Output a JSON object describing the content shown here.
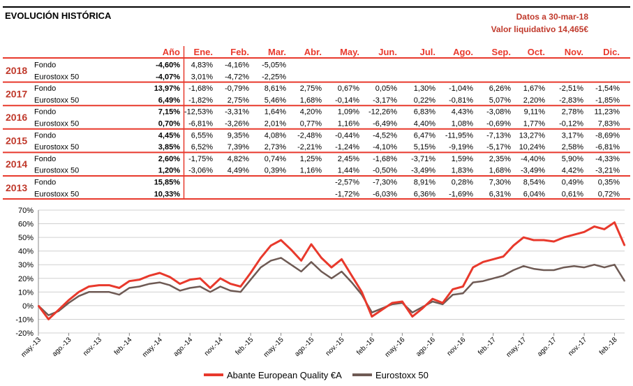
{
  "header": {
    "title": "EVOLUCIÓN HISTÓRICA",
    "date_line": "Datos a 30-mar-18",
    "nav_line": "Valor liquidativo 14,465€"
  },
  "colors": {
    "accent": "#e8392c",
    "fund_line": "#e8392c",
    "index_line": "#6e5a54",
    "row_label": "#c0392b"
  },
  "table": {
    "columns": [
      "Año",
      "Ene.",
      "Feb.",
      "Mar.",
      "Abr.",
      "May.",
      "Jun.",
      "Jul.",
      "Ago.",
      "Sep.",
      "Oct.",
      "Nov.",
      "Dic."
    ],
    "years": [
      {
        "year": "2018",
        "rows": [
          {
            "label": "Fondo",
            "values": [
              "-4,60%",
              "4,83%",
              "-4,16%",
              "-5,05%",
              "",
              "",
              "",
              "",
              "",
              "",
              "",
              "",
              ""
            ]
          },
          {
            "label": "Eurostoxx 50",
            "values": [
              "-4,07%",
              "3,01%",
              "-4,72%",
              "-2,25%",
              "",
              "",
              "",
              "",
              "",
              "",
              "",
              "",
              ""
            ]
          }
        ]
      },
      {
        "year": "2017",
        "rows": [
          {
            "label": "Fondo",
            "values": [
              "13,97%",
              "-1,68%",
              "-0,79%",
              "8,61%",
              "2,75%",
              "0,67%",
              "0,05%",
              "1,30%",
              "-1,04%",
              "6,26%",
              "1,67%",
              "-2,51%",
              "-1,54%"
            ]
          },
          {
            "label": "Eurostoxx 50",
            "values": [
              "6,49%",
              "-1,82%",
              "2,75%",
              "5,46%",
              "1,68%",
              "-0,14%",
              "-3,17%",
              "0,22%",
              "-0,81%",
              "5,07%",
              "2,20%",
              "-2,83%",
              "-1,85%"
            ]
          }
        ]
      },
      {
        "year": "2016",
        "rows": [
          {
            "label": "Fondo",
            "values": [
              "7,15%",
              "-12,53%",
              "-3,31%",
              "1,64%",
              "4,20%",
              "1,09%",
              "-12,26%",
              "6,83%",
              "4,43%",
              "-3,08%",
              "9,11%",
              "2,78%",
              "11,23%"
            ]
          },
          {
            "label": "Eurostoxx 50",
            "values": [
              "0,70%",
              "-6,81%",
              "-3,26%",
              "2,01%",
              "0,77%",
              "1,16%",
              "-6,49%",
              "4,40%",
              "1,08%",
              "-0,69%",
              "1,77%",
              "-0,12%",
              "7,83%"
            ]
          }
        ]
      },
      {
        "year": "2015",
        "rows": [
          {
            "label": "Fondo",
            "values": [
              "4,45%",
              "6,55%",
              "9,35%",
              "4,08%",
              "-2,48%",
              "-0,44%",
              "-4,52%",
              "6,47%",
              "-11,95%",
              "-7,13%",
              "13,27%",
              "3,17%",
              "-8,69%"
            ]
          },
          {
            "label": "Eurostoxx 50",
            "values": [
              "3,85%",
              "6,52%",
              "7,39%",
              "2,73%",
              "-2,21%",
              "-1,24%",
              "-4,10%",
              "5,15%",
              "-9,19%",
              "-5,17%",
              "10,24%",
              "2,58%",
              "-6,81%"
            ]
          }
        ]
      },
      {
        "year": "2014",
        "rows": [
          {
            "label": "Fondo",
            "values": [
              "2,60%",
              "-1,75%",
              "4,82%",
              "0,74%",
              "1,25%",
              "2,45%",
              "-1,68%",
              "-3,71%",
              "1,59%",
              "2,35%",
              "-4,40%",
              "5,90%",
              "-4,33%"
            ]
          },
          {
            "label": "Eurostoxx 50",
            "values": [
              "1,20%",
              "-3,06%",
              "4,49%",
              "0,39%",
              "1,16%",
              "1,44%",
              "-0,50%",
              "-3,49%",
              "1,83%",
              "1,68%",
              "-3,49%",
              "4,42%",
              "-3,21%"
            ]
          }
        ]
      },
      {
        "year": "2013",
        "rows": [
          {
            "label": "Fondo",
            "values": [
              "15,85%",
              "",
              "",
              "",
              "",
              "-2,57%",
              "-7,30%",
              "8,91%",
              "0,28%",
              "7,30%",
              "8,54%",
              "0,49%",
              "0,35%"
            ]
          },
          {
            "label": "Eurostoxx 50",
            "values": [
              "10,33%",
              "",
              "",
              "",
              "",
              "-1,72%",
              "-6,03%",
              "6,36%",
              "-1,69%",
              "6,31%",
              "6,04%",
              "0,61%",
              "0,72%"
            ]
          }
        ]
      }
    ]
  },
  "chart_data": {
    "type": "line",
    "title": "",
    "xlabel": "",
    "ylabel": "",
    "ylim": [
      -20,
      70
    ],
    "yticks": [
      "70%",
      "60%",
      "50%",
      "40%",
      "30%",
      "20%",
      "10%",
      "0%",
      "-10%",
      "-20%"
    ],
    "x": [
      "may-13",
      "jun-13",
      "jul-13",
      "ago-13",
      "sep-13",
      "oct-13",
      "nov-13",
      "dic-13",
      "ene-14",
      "feb-14",
      "mar-14",
      "abr-14",
      "may-14",
      "jun-14",
      "jul-14",
      "ago-14",
      "sep-14",
      "oct-14",
      "nov-14",
      "dic-14",
      "ene-15",
      "feb-15",
      "mar-15",
      "abr-15",
      "may-15",
      "jun-15",
      "jul-15",
      "ago-15",
      "sep-15",
      "oct-15",
      "nov-15",
      "dic-15",
      "ene-16",
      "feb-16",
      "mar-16",
      "abr-16",
      "may-16",
      "jun-16",
      "jul-16",
      "ago-16",
      "sep-16",
      "oct-16",
      "nov-16",
      "dic-16",
      "ene-17",
      "feb-17",
      "mar-17",
      "abr-17",
      "may-17",
      "jun-17",
      "jul-17",
      "ago-17",
      "sep-17",
      "oct-17",
      "nov-17",
      "dic-17",
      "ene-18",
      "feb-18",
      "mar-18"
    ],
    "xtick_labels": [
      "may.-13",
      "ago.-13",
      "nov.-13",
      "feb.-14",
      "may.-14",
      "ago.-14",
      "nov.-14",
      "feb.-15",
      "may.-15",
      "ago.-15",
      "nov.-15",
      "feb.-16",
      "may.-16",
      "ago.-16",
      "nov.-16",
      "feb.-17",
      "may.-17",
      "ago.-17",
      "nov.-17",
      "feb.-18"
    ],
    "series": [
      {
        "name": "Abante European Quality €A",
        "color": "#e8392c",
        "values": [
          0,
          -10,
          -3,
          4,
          10,
          14,
          15,
          15,
          13,
          18,
          19,
          22,
          24,
          21,
          16,
          19,
          20,
          13,
          20,
          16,
          14,
          24,
          35,
          44,
          48,
          41,
          33,
          45,
          35,
          28,
          34,
          22,
          10,
          -8,
          -3,
          2,
          3,
          -8,
          -2,
          5,
          2,
          12,
          14,
          28,
          32,
          34,
          36,
          44,
          50,
          48,
          48,
          47,
          50,
          52,
          54,
          58,
          56,
          61,
          44
        ]
      },
      {
        "name": "Eurostoxx 50",
        "color": "#6e5a54",
        "values": [
          0,
          -7,
          -4,
          2,
          7,
          10,
          10,
          10,
          8,
          13,
          14,
          16,
          17,
          15,
          11,
          13,
          14,
          10,
          14,
          11,
          10,
          19,
          28,
          33,
          35,
          30,
          25,
          32,
          25,
          20,
          25,
          17,
          8,
          -5,
          -2,
          1,
          2,
          -5,
          -1,
          3,
          1,
          8,
          9,
          17,
          18,
          20,
          22,
          26,
          29,
          27,
          26,
          26,
          28,
          29,
          28,
          30,
          28,
          30,
          18
        ]
      }
    ],
    "legend": "bottom",
    "grid": true
  }
}
